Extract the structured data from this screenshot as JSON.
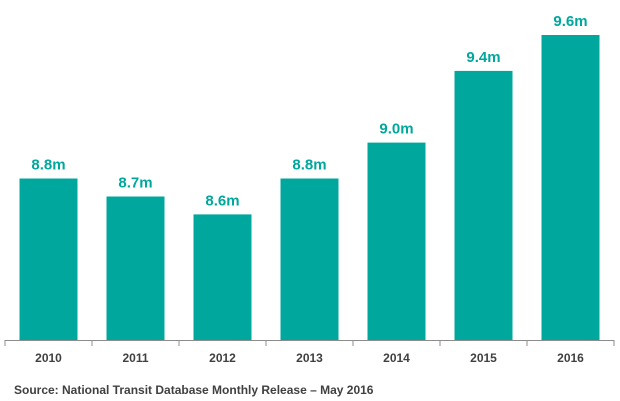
{
  "colors": {
    "bar": "#00A79D",
    "label": "#00A79D",
    "axis": "#8c8c8c",
    "tick_text": "#404040"
  },
  "chart_data": {
    "type": "bar",
    "categories": [
      "2010",
      "2011",
      "2012",
      "2013",
      "2014",
      "2015",
      "2016"
    ],
    "values": [
      8.8,
      8.7,
      8.6,
      8.8,
      9.0,
      9.4,
      9.6
    ],
    "data_labels": [
      "8.8m",
      "8.7m",
      "8.6m",
      "8.8m",
      "9.0m",
      "9.4m",
      "9.6m"
    ],
    "title": "",
    "xlabel": "",
    "ylabel": "",
    "grid": false,
    "legend": "none"
  },
  "source_note": "Source: National Transit Database Monthly Release – May 2016"
}
